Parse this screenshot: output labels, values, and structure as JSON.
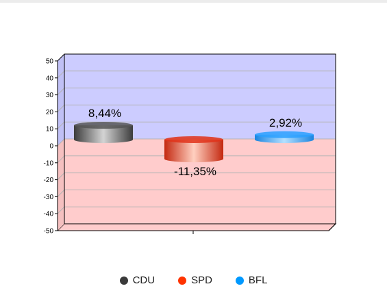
{
  "chart_data": {
    "type": "bar",
    "categories": [
      "CDU",
      "SPD",
      "BFL"
    ],
    "values": [
      8.44,
      -11.35,
      2.92
    ],
    "value_labels": [
      "8,44%",
      "-11,35%",
      "2,92%"
    ],
    "ylim": [
      -50,
      50
    ],
    "yticks": [
      50,
      40,
      30,
      20,
      10,
      0,
      -10,
      -20,
      -30,
      -40,
      -50
    ],
    "grid": true,
    "legend_position": "bottom",
    "colors": [
      "#555555",
      "#e0321a",
      "#2aa0ff"
    ],
    "positive_background": "#ccccff",
    "negative_background": "#ffcccc"
  },
  "legend": [
    {
      "label": "CDU",
      "color": "#3a3a3a"
    },
    {
      "label": "SPD",
      "color": "#ff3300"
    },
    {
      "label": "BFL",
      "color": "#0099ff"
    }
  ]
}
